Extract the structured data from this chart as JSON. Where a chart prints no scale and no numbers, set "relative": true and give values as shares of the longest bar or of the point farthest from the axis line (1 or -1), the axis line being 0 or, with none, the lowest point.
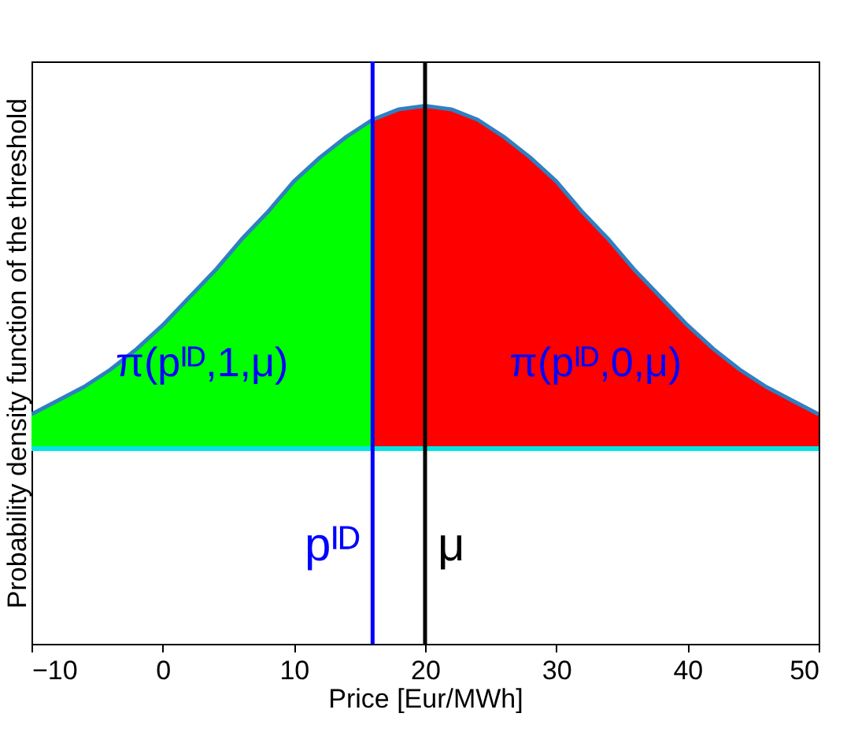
{
  "chart_data": {
    "type": "area",
    "xlabel": "Price [Eur/MWh]",
    "ylabel": "Probability density function of the threshold",
    "relative": true,
    "xlim": [
      -10,
      50
    ],
    "xticks": [
      -10,
      0,
      10,
      20,
      30,
      40,
      50
    ],
    "series": [
      {
        "color": "#00ff00",
        "x": [
          -10,
          -8,
          -6,
          -4,
          -2,
          0,
          2,
          4,
          6,
          8,
          10,
          12,
          14,
          16
        ],
        "values": [
          0.1,
          0.14,
          0.18,
          0.23,
          0.29,
          0.36,
          0.44,
          0.52,
          0.61,
          0.69,
          0.78,
          0.85,
          0.91,
          0.96
        ]
      },
      {
        "color": "#ff0000",
        "x": [
          16,
          18,
          20,
          22,
          24,
          26,
          28,
          30,
          32,
          34,
          36,
          38,
          40,
          42,
          44,
          46,
          48,
          50
        ],
        "values": [
          0.96,
          0.99,
          1,
          0.99,
          0.96,
          0.91,
          0.85,
          0.78,
          0.69,
          0.61,
          0.52,
          0.44,
          0.36,
          0.29,
          0.23,
          0.18,
          0.14,
          0.1
        ]
      },
      {
        "type": "line",
        "color": "#2f7fc1",
        "x": [
          -10,
          -8,
          -6,
          -4,
          -2,
          0,
          2,
          4,
          6,
          8,
          10,
          12,
          14,
          16,
          18,
          20,
          22,
          24,
          26,
          28,
          30,
          32,
          34,
          36,
          38,
          40,
          42,
          44,
          46,
          48,
          50
        ],
        "values": [
          0.1,
          0.14,
          0.18,
          0.23,
          0.29,
          0.36,
          0.44,
          0.52,
          0.61,
          0.69,
          0.78,
          0.85,
          0.91,
          0.96,
          0.99,
          1,
          0.99,
          0.96,
          0.91,
          0.85,
          0.78,
          0.69,
          0.61,
          0.52,
          0.44,
          0.36,
          0.29,
          0.23,
          0.18,
          0.14,
          0.1
        ]
      }
    ],
    "ref_lines": [
      {
        "axis": "y",
        "value": 0,
        "color": "#00e5e5"
      },
      {
        "axis": "x",
        "value": 16,
        "label": "pᴵᴰ",
        "color": "#0000ff"
      },
      {
        "axis": "x",
        "value": 20,
        "label": "μ",
        "color": "#000000"
      }
    ],
    "annotations": [
      "π(pᴵᴰ,1,μ)",
      "π(pᴵᴰ,0,μ)"
    ]
  }
}
